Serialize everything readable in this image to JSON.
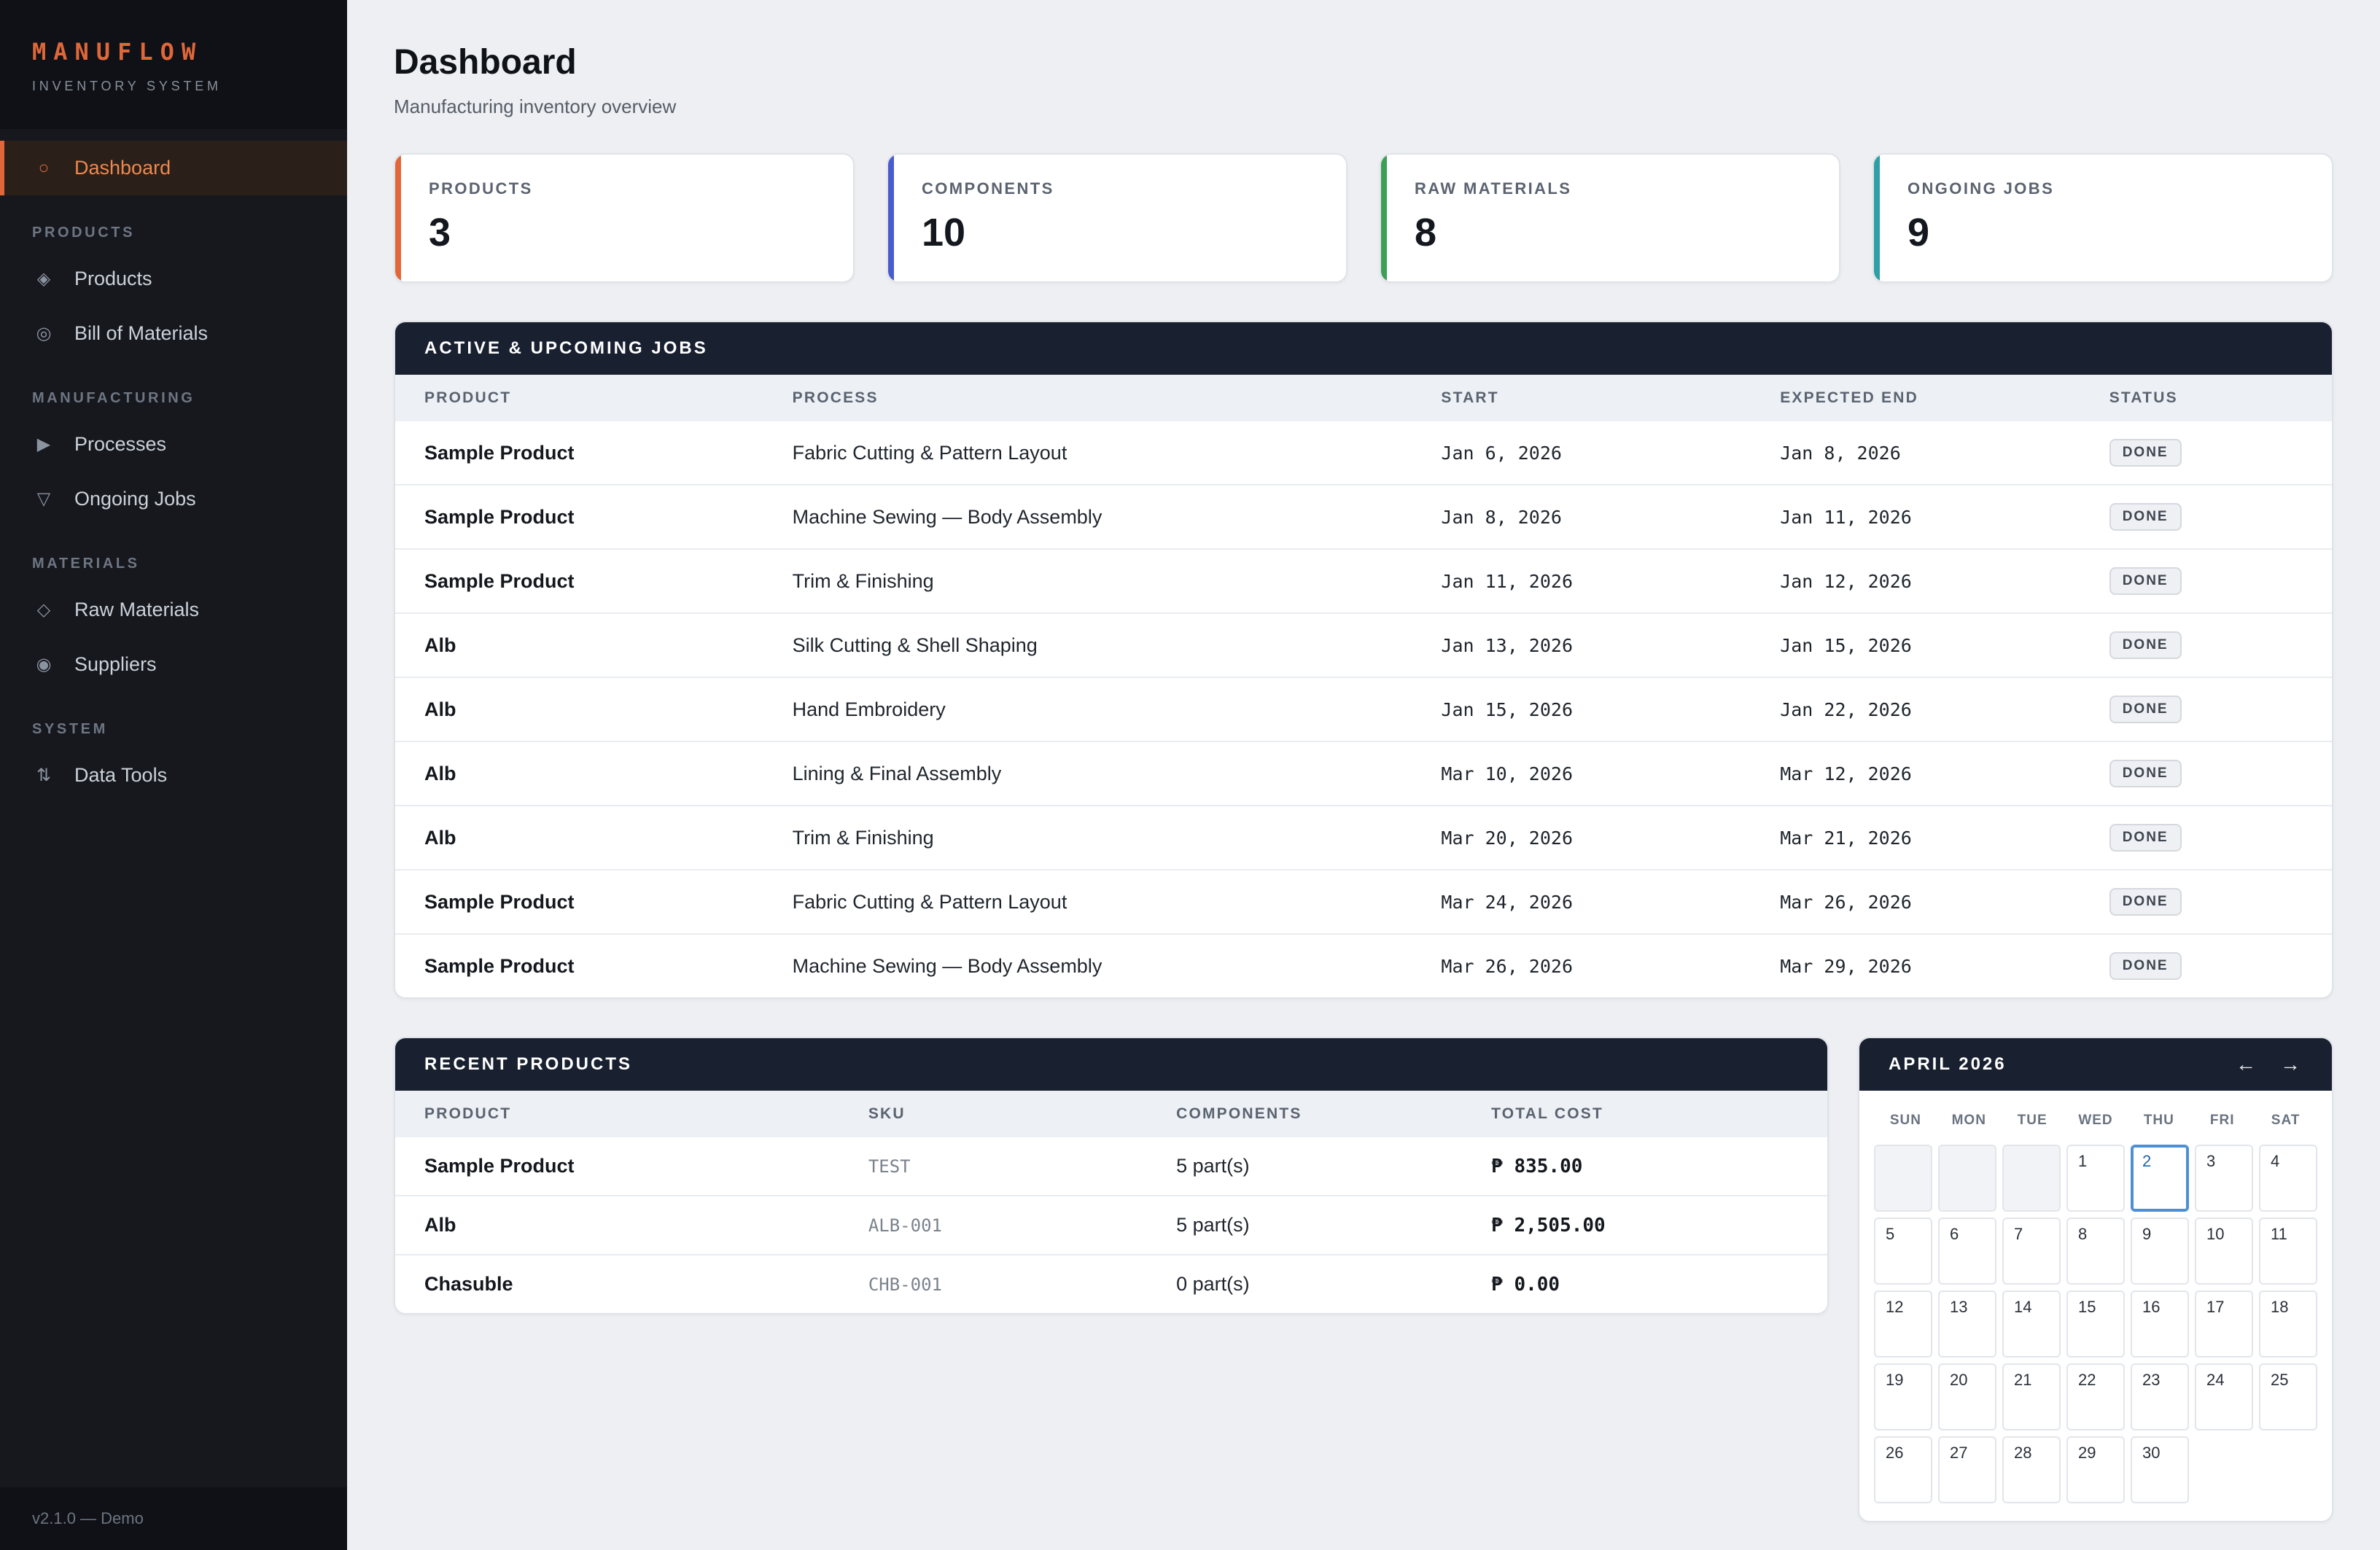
{
  "app": {
    "name": "MANUFLOW",
    "subtitle": "INVENTORY SYSTEM",
    "version": "v2.1.0 — Demo"
  },
  "sidebar": {
    "sections": [
      {
        "label": "",
        "items": [
          {
            "label": "Dashboard",
            "icon": "dashboard-icon",
            "glyph": "○",
            "active": true
          }
        ]
      },
      {
        "label": "PRODUCTS",
        "items": [
          {
            "label": "Products",
            "icon": "products-icon",
            "glyph": "◈"
          },
          {
            "label": "Bill of Materials",
            "icon": "bill-of-materials-icon",
            "glyph": "◎"
          }
        ]
      },
      {
        "label": "MANUFACTURING",
        "items": [
          {
            "label": "Processes",
            "icon": "processes-icon",
            "glyph": "▶"
          },
          {
            "label": "Ongoing Jobs",
            "icon": "ongoing-jobs-icon",
            "glyph": "▽"
          }
        ]
      },
      {
        "label": "MATERIALS",
        "items": [
          {
            "label": "Raw Materials",
            "icon": "raw-materials-icon",
            "glyph": "◇"
          },
          {
            "label": "Suppliers",
            "icon": "suppliers-icon",
            "glyph": "◉"
          }
        ]
      },
      {
        "label": "SYSTEM",
        "items": [
          {
            "label": "Data Tools",
            "icon": "data-tools-icon",
            "glyph": "⇅"
          }
        ]
      }
    ]
  },
  "header": {
    "title": "Dashboard",
    "subtitle": "Manufacturing inventory overview"
  },
  "stats": [
    {
      "label": "PRODUCTS",
      "value": "3",
      "accent": "#e0673a"
    },
    {
      "label": "COMPONENTS",
      "value": "10",
      "accent": "#4a5bd0"
    },
    {
      "label": "RAW MATERIALS",
      "value": "8",
      "accent": "#3d9e57"
    },
    {
      "label": "ONGOING JOBS",
      "value": "9",
      "accent": "#2e9fa5"
    }
  ],
  "jobs_table": {
    "title": "ACTIVE & UPCOMING JOBS",
    "columns": [
      "PRODUCT",
      "PROCESS",
      "START",
      "EXPECTED END",
      "STATUS"
    ],
    "rows": [
      {
        "product": "Sample Product",
        "process": "Fabric Cutting & Pattern Layout",
        "start": "Jan 6, 2026",
        "end": "Jan 8, 2026",
        "status": "DONE"
      },
      {
        "product": "Sample Product",
        "process": "Machine Sewing — Body Assembly",
        "start": "Jan 8, 2026",
        "end": "Jan 11, 2026",
        "status": "DONE"
      },
      {
        "product": "Sample Product",
        "process": "Trim & Finishing",
        "start": "Jan 11, 2026",
        "end": "Jan 12, 2026",
        "status": "DONE"
      },
      {
        "product": "Alb",
        "process": "Silk Cutting & Shell Shaping",
        "start": "Jan 13, 2026",
        "end": "Jan 15, 2026",
        "status": "DONE"
      },
      {
        "product": "Alb",
        "process": "Hand Embroidery",
        "start": "Jan 15, 2026",
        "end": "Jan 22, 2026",
        "status": "DONE"
      },
      {
        "product": "Alb",
        "process": "Lining & Final Assembly",
        "start": "Mar 10, 2026",
        "end": "Mar 12, 2026",
        "status": "DONE"
      },
      {
        "product": "Alb",
        "process": "Trim & Finishing",
        "start": "Mar 20, 2026",
        "end": "Mar 21, 2026",
        "status": "DONE"
      },
      {
        "product": "Sample Product",
        "process": "Fabric Cutting & Pattern Layout",
        "start": "Mar 24, 2026",
        "end": "Mar 26, 2026",
        "status": "DONE"
      },
      {
        "product": "Sample Product",
        "process": "Machine Sewing — Body Assembly",
        "start": "Mar 26, 2026",
        "end": "Mar 29, 2026",
        "status": "DONE"
      }
    ]
  },
  "recent_products": {
    "title": "RECENT PRODUCTS",
    "columns": [
      "PRODUCT",
      "SKU",
      "COMPONENTS",
      "TOTAL COST"
    ],
    "rows": [
      {
        "product": "Sample Product",
        "sku": "TEST",
        "components": "5 part(s)",
        "cost": "₱ 835.00"
      },
      {
        "product": "Alb",
        "sku": "ALB-001",
        "components": "5 part(s)",
        "cost": "₱ 2,505.00"
      },
      {
        "product": "Chasuble",
        "sku": "CHB-001",
        "components": "0 part(s)",
        "cost": "₱ 0.00"
      }
    ]
  },
  "calendar": {
    "title": "APRIL 2026",
    "prev_icon": "←",
    "next_icon": "→",
    "day_headers": [
      "SUN",
      "MON",
      "TUE",
      "WED",
      "THU",
      "FRI",
      "SAT"
    ],
    "leading_empty": 3,
    "days": 30,
    "today": 2
  }
}
